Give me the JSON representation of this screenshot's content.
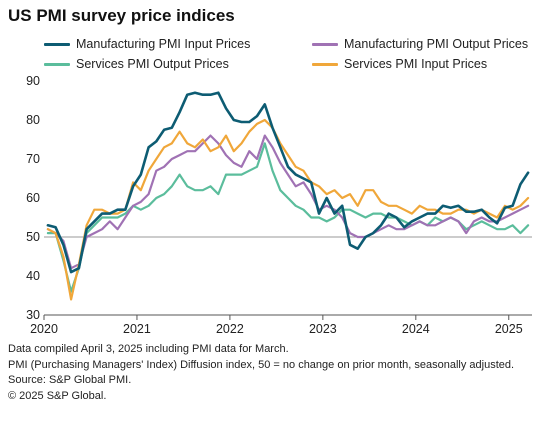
{
  "title": "US PMI survey price indices",
  "notes": [
    "Data compiled April 3, 2025 including PMI data for March.",
    "PMI (Purchasing Managers' Index) Diffusion index, 50 = no change on prior month, seasonally adjusted.",
    "Source: S&P Global PMI.",
    "© 2025 S&P Global."
  ],
  "chart_data": {
    "type": "line",
    "title": "US PMI survey price indices",
    "xlabel": "",
    "ylabel": "",
    "xlim": [
      2020.0,
      2025.25
    ],
    "ylim": [
      30,
      90
    ],
    "y_ticks": [
      30,
      40,
      50,
      60,
      70,
      80,
      90
    ],
    "x_ticks": [
      "2020",
      "2021",
      "2022",
      "2023",
      "2024",
      "2025"
    ],
    "reference_line": 50,
    "grid": false,
    "legend": "top",
    "x": [
      "2020-01",
      "2020-02",
      "2020-03",
      "2020-04",
      "2020-05",
      "2020-06",
      "2020-07",
      "2020-08",
      "2020-09",
      "2020-10",
      "2020-11",
      "2020-12",
      "2021-01",
      "2021-02",
      "2021-03",
      "2021-04",
      "2021-05",
      "2021-06",
      "2021-07",
      "2021-08",
      "2021-09",
      "2021-10",
      "2021-11",
      "2021-12",
      "2022-01",
      "2022-02",
      "2022-03",
      "2022-04",
      "2022-05",
      "2022-06",
      "2022-07",
      "2022-08",
      "2022-09",
      "2022-10",
      "2022-11",
      "2022-12",
      "2023-01",
      "2023-02",
      "2023-03",
      "2023-04",
      "2023-05",
      "2023-06",
      "2023-07",
      "2023-08",
      "2023-09",
      "2023-10",
      "2023-11",
      "2023-12",
      "2024-01",
      "2024-02",
      "2024-03",
      "2024-04",
      "2024-05",
      "2024-06",
      "2024-07",
      "2024-08",
      "2024-09",
      "2024-10",
      "2024-11",
      "2024-12",
      "2025-01",
      "2025-02",
      "2025-03"
    ],
    "series": [
      {
        "name": "Manufacturing PMI Input Prices",
        "color": "#0d5c73",
        "values": [
          53,
          52.5,
          48,
          41,
          42,
          52,
          54,
          56,
          56,
          57,
          57,
          63,
          66,
          73,
          74.5,
          77.5,
          78,
          82,
          86.5,
          87,
          86.5,
          86.5,
          87,
          83,
          80,
          79.5,
          79.5,
          81,
          84,
          78,
          73,
          68,
          66,
          65,
          64,
          56,
          60,
          56,
          58,
          48,
          47,
          50,
          51,
          53,
          56,
          55,
          52.5,
          54,
          55,
          56,
          56,
          58,
          57.5,
          58,
          56.5,
          56.5,
          57,
          55,
          53.5,
          57.5,
          58,
          63.5,
          66.5
        ]
      },
      {
        "name": "Manufacturing PMI Output Prices",
        "color": "#a072b4",
        "values": [
          52,
          51,
          49,
          42,
          43,
          50,
          51,
          52,
          54,
          52,
          55,
          58,
          59,
          61,
          67,
          68,
          70,
          71,
          72,
          72,
          74,
          76,
          74,
          71,
          69,
          68,
          72,
          70,
          76,
          73,
          69,
          66,
          63,
          64,
          61,
          57,
          58,
          57,
          55,
          51,
          50,
          50,
          51,
          52,
          53,
          52,
          52,
          53,
          54,
          53,
          53,
          54,
          55,
          54,
          51,
          54,
          55,
          54,
          54,
          55,
          56,
          57,
          58
        ]
      },
      {
        "name": "Services PMI Output Prices",
        "color": "#5bbd9c",
        "values": [
          51,
          51,
          44,
          36,
          42,
          51,
          53,
          55,
          55,
          55,
          56,
          58,
          57,
          58,
          60,
          61,
          63,
          66,
          63,
          62,
          62,
          63,
          61,
          66,
          66,
          66,
          67,
          68,
          74,
          67,
          62,
          60,
          58,
          57,
          55,
          55,
          54,
          55,
          57,
          57,
          56,
          55,
          56,
          56,
          55,
          55,
          54,
          53,
          54,
          53,
          55,
          54,
          55,
          54,
          52,
          53,
          54,
          53,
          52,
          52,
          53,
          51,
          53
        ]
      },
      {
        "name": "Services PMI Input Prices",
        "color": "#f0a73a",
        "values": [
          52,
          51,
          45,
          34,
          43,
          53,
          57,
          57,
          56,
          56,
          57,
          64,
          62,
          67,
          70,
          73,
          74,
          77,
          74,
          73,
          75,
          72,
          73,
          76,
          72,
          74,
          77,
          79,
          80,
          78,
          74,
          71,
          68,
          67,
          64,
          63,
          61,
          62,
          60,
          61,
          58,
          62,
          62,
          59,
          58,
          58,
          57,
          56,
          58,
          57,
          57,
          56,
          56,
          57,
          57,
          56,
          57,
          56,
          55,
          58,
          57,
          58,
          60
        ]
      }
    ]
  }
}
